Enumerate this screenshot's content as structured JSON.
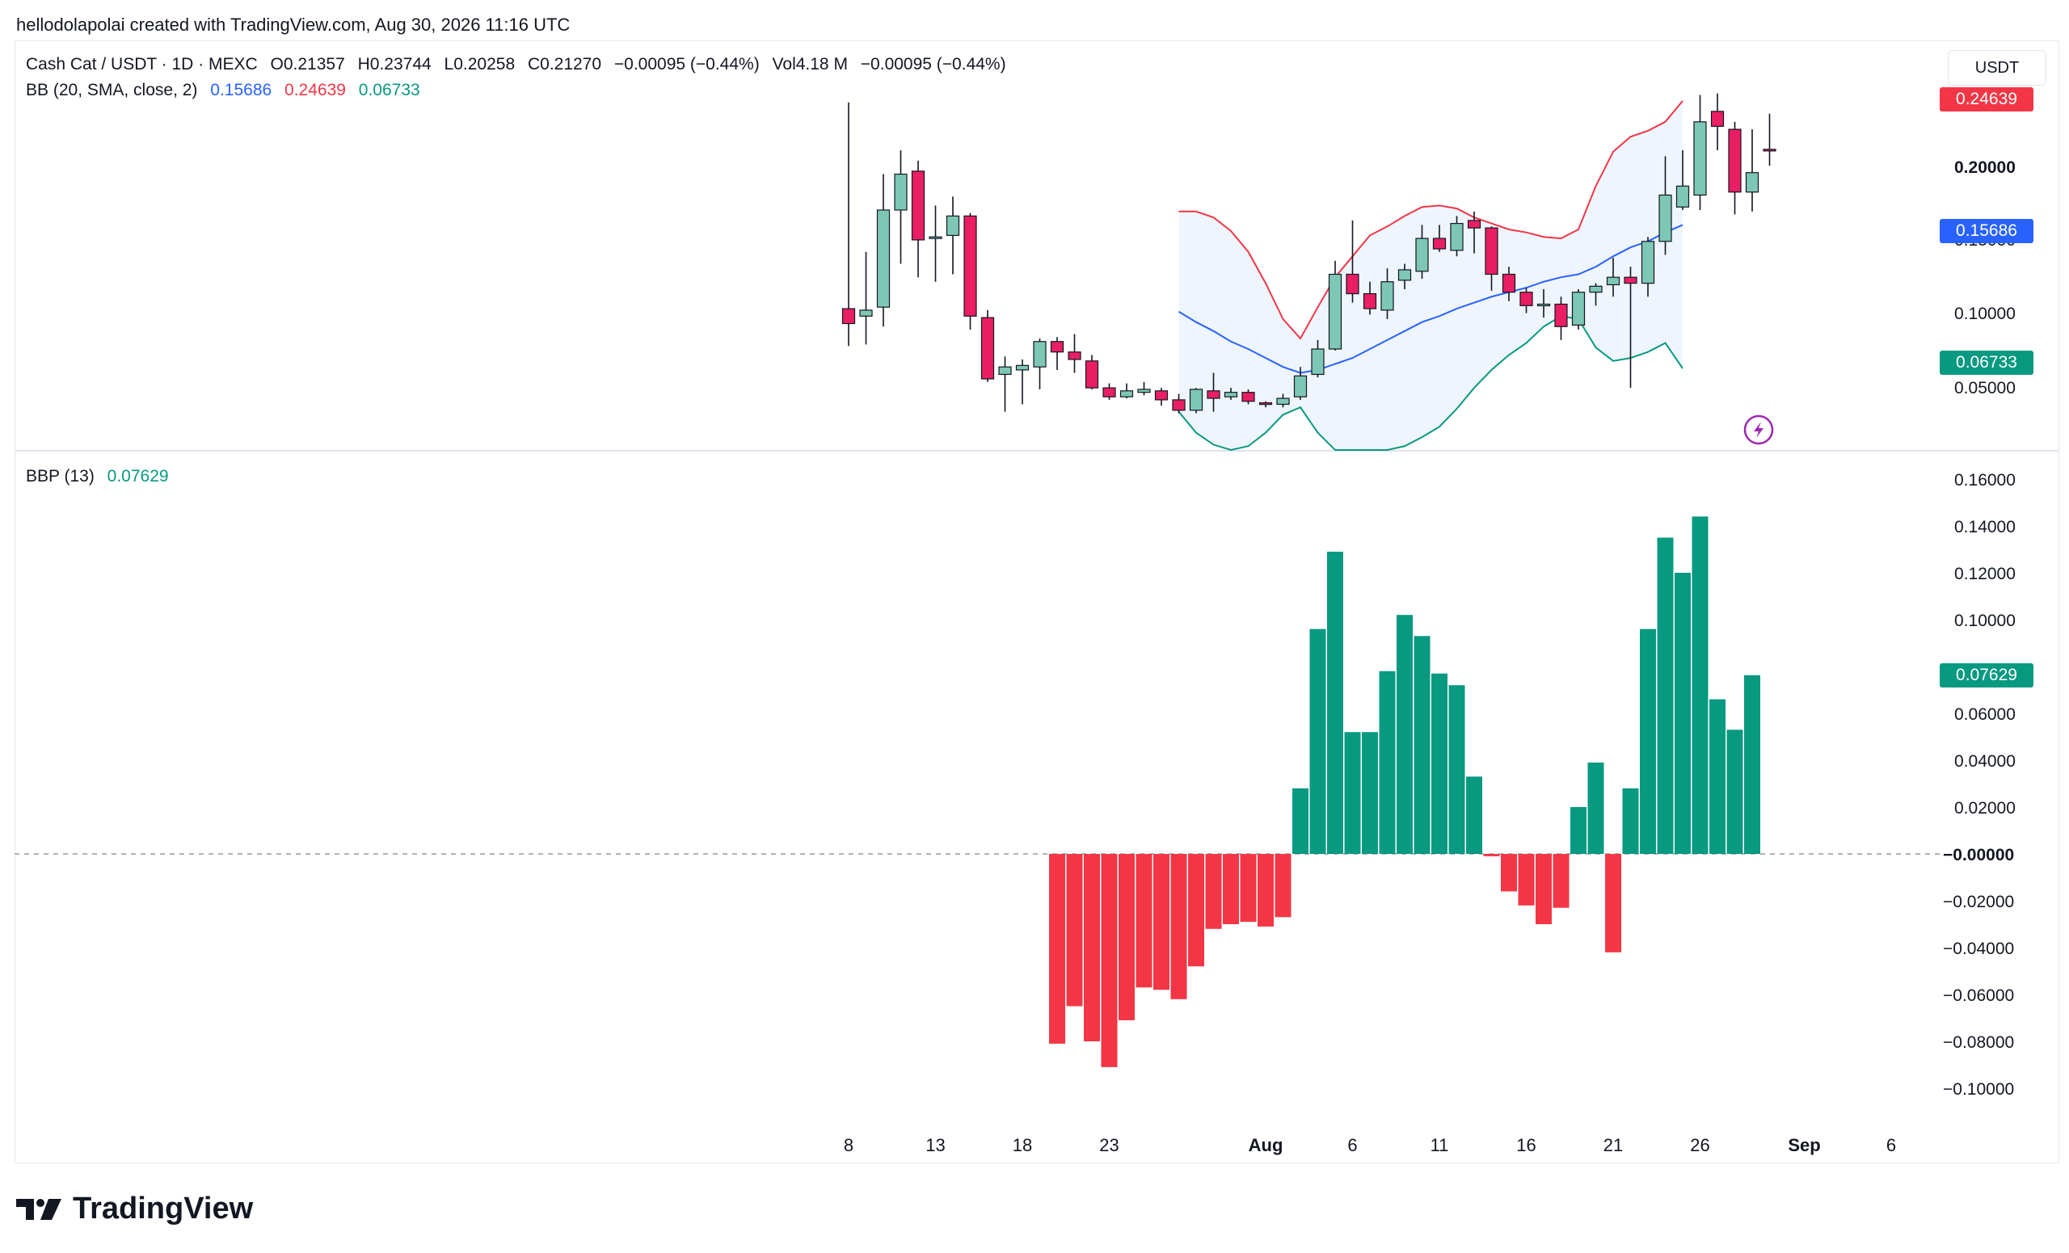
{
  "header": {
    "attribution": "hellodolapolai created with TradingView.com, Aug 30, 2026 11:16 UTC"
  },
  "legend": {
    "symbol": "Cash Cat / USDT · 1D · MEXC",
    "open": "O0.21357",
    "high": "H0.23744",
    "low": "L0.20258",
    "close": "C0.21270",
    "change": "−0.00095 (−0.44%)",
    "volume": "Vol4.18 M",
    "volume_change": "−0.00095 (−0.44%)",
    "bb_label": "BB (20, SMA, close, 2)",
    "bb_basis": "0.15686",
    "bb_upper": "0.24639",
    "bb_lower": "0.06733",
    "bbp_label": "BBP (13)",
    "bbp_value": "0.07629"
  },
  "unit_button": "USDT",
  "colors": {
    "up": "#7dc7b4",
    "down": "#e91e63",
    "bull_bar": "#089981",
    "bear_bar": "#f23645",
    "basis": "#2962ff",
    "upper": "#f23645",
    "lower": "#089981",
    "band_fill": "#eef5fd"
  },
  "price_axis": {
    "labels": [
      "0.20000",
      "0.15000",
      "0.10000",
      "0.05000"
    ],
    "tags": {
      "upper": "0.24639",
      "basis": "0.15686",
      "lower": "0.06733"
    }
  },
  "bbp_axis": {
    "labels": [
      "0.16000",
      "0.14000",
      "0.12000",
      "0.10000",
      "0.06000",
      "0.04000",
      "0.02000",
      "−0.00000",
      "−0.02000",
      "−0.04000",
      "−0.06000",
      "−0.08000",
      "−0.10000"
    ],
    "tag": "0.07629"
  },
  "x_axis": {
    "ticks": [
      "8",
      "13",
      "18",
      "23",
      "Aug",
      "6",
      "11",
      "16",
      "21",
      "26",
      "Sep",
      "6"
    ]
  },
  "brand": {
    "name": "TradingView"
  },
  "chart_data": [
    {
      "type": "candlestick",
      "title": "Cash Cat / USDT · 1D · MEXC",
      "x_start": "Jul 8, 2026",
      "ohlc": [
        [
          0.107,
          0.245,
          0.082,
          0.097
        ],
        [
          0.102,
          0.145,
          0.083,
          0.106
        ],
        [
          0.108,
          0.197,
          0.095,
          0.173
        ],
        [
          0.173,
          0.213,
          0.137,
          0.197
        ],
        [
          0.199,
          0.206,
          0.128,
          0.153
        ],
        [
          0.155,
          0.176,
          0.125,
          0.155
        ],
        [
          0.156,
          0.182,
          0.13,
          0.169
        ],
        [
          0.169,
          0.171,
          0.093,
          0.102
        ],
        [
          0.101,
          0.106,
          0.058,
          0.06
        ],
        [
          0.063,
          0.075,
          0.038,
          0.068
        ],
        [
          0.066,
          0.073,
          0.043,
          0.069
        ],
        [
          0.068,
          0.087,
          0.053,
          0.085
        ],
        [
          0.085,
          0.088,
          0.066,
          0.078
        ],
        [
          0.078,
          0.09,
          0.064,
          0.073
        ],
        [
          0.072,
          0.076,
          0.053,
          0.054
        ],
        [
          0.054,
          0.057,
          0.046,
          0.048
        ],
        [
          0.048,
          0.057,
          0.047,
          0.052
        ],
        [
          0.051,
          0.058,
          0.049,
          0.053
        ],
        [
          0.052,
          0.054,
          0.042,
          0.046
        ],
        [
          0.046,
          0.05,
          0.037,
          0.039
        ],
        [
          0.039,
          0.054,
          0.037,
          0.053
        ],
        [
          0.052,
          0.064,
          0.038,
          0.047
        ],
        [
          0.048,
          0.054,
          0.046,
          0.051
        ],
        [
          0.051,
          0.053,
          0.043,
          0.045
        ],
        [
          0.044,
          0.045,
          0.041,
          0.043
        ],
        [
          0.043,
          0.05,
          0.041,
          0.047
        ],
        [
          0.048,
          0.068,
          0.046,
          0.062
        ],
        [
          0.063,
          0.086,
          0.061,
          0.08
        ],
        [
          0.08,
          0.139,
          0.079,
          0.13
        ],
        [
          0.13,
          0.166,
          0.111,
          0.117
        ],
        [
          0.117,
          0.125,
          0.103,
          0.107
        ],
        [
          0.106,
          0.134,
          0.1,
          0.125
        ],
        [
          0.126,
          0.137,
          0.12,
          0.133
        ],
        [
          0.132,
          0.163,
          0.127,
          0.154
        ],
        [
          0.154,
          0.163,
          0.145,
          0.147
        ],
        [
          0.146,
          0.169,
          0.142,
          0.164
        ],
        [
          0.166,
          0.172,
          0.144,
          0.161
        ],
        [
          0.161,
          0.162,
          0.119,
          0.13
        ],
        [
          0.13,
          0.135,
          0.112,
          0.118
        ],
        [
          0.118,
          0.121,
          0.104,
          0.109
        ],
        [
          0.109,
          0.12,
          0.101,
          0.11
        ],
        [
          0.11,
          0.115,
          0.086,
          0.095
        ],
        [
          0.096,
          0.12,
          0.093,
          0.118
        ],
        [
          0.118,
          0.124,
          0.109,
          0.122
        ],
        [
          0.123,
          0.141,
          0.115,
          0.128
        ],
        [
          0.128,
          0.135,
          0.054,
          0.124
        ],
        [
          0.124,
          0.155,
          0.115,
          0.152
        ],
        [
          0.152,
          0.209,
          0.143,
          0.183
        ],
        [
          0.175,
          0.213,
          0.173,
          0.189
        ],
        [
          0.183,
          0.25,
          0.173,
          0.232
        ],
        [
          0.239,
          0.251,
          0.213,
          0.229
        ],
        [
          0.227,
          0.232,
          0.17,
          0.185
        ],
        [
          0.185,
          0.227,
          0.172,
          0.198
        ],
        [
          0.2136,
          0.2374,
          0.2026,
          0.2127
        ]
      ]
    },
    {
      "type": "line",
      "title": "BB (20, SMA, close, 2)",
      "x_start_index": 19,
      "series": [
        {
          "name": "Basis",
          "values": [
            0.105,
            0.098,
            0.092,
            0.085,
            0.08,
            0.074,
            0.068,
            0.064,
            0.066,
            0.07,
            0.074,
            0.08,
            0.086,
            0.092,
            0.098,
            0.102,
            0.107,
            0.111,
            0.115,
            0.118,
            0.121,
            0.125,
            0.128,
            0.13,
            0.135,
            0.142,
            0.148,
            0.152,
            0.158,
            0.163
          ]
        },
        {
          "name": "Upper",
          "values": [
            0.172,
            0.172,
            0.168,
            0.159,
            0.145,
            0.124,
            0.1,
            0.087,
            0.108,
            0.128,
            0.142,
            0.156,
            0.162,
            0.169,
            0.175,
            0.176,
            0.174,
            0.168,
            0.164,
            0.16,
            0.158,
            0.155,
            0.154,
            0.16,
            0.189,
            0.212,
            0.222,
            0.226,
            0.232,
            0.246
          ]
        },
        {
          "name": "Lower",
          "values": [
            0.038,
            0.024,
            0.016,
            0.011,
            0.015,
            0.024,
            0.036,
            0.041,
            0.024,
            0.012,
            0.006,
            0.004,
            0.01,
            0.015,
            0.021,
            0.028,
            0.04,
            0.054,
            0.066,
            0.076,
            0.084,
            0.095,
            0.102,
            0.1,
            0.081,
            0.072,
            0.074,
            0.078,
            0.084,
            0.067
          ]
        }
      ]
    },
    {
      "type": "bar",
      "title": "BBP (13)",
      "x_start_index": 12,
      "values": [
        -0.081,
        -0.065,
        -0.08,
        -0.091,
        -0.071,
        -0.057,
        -0.058,
        -0.062,
        -0.048,
        -0.032,
        -0.03,
        -0.029,
        -0.031,
        -0.027,
        0.028,
        0.096,
        0.129,
        0.052,
        0.052,
        0.078,
        0.102,
        0.093,
        0.077,
        0.072,
        0.033,
        -0.001,
        -0.016,
        -0.022,
        -0.03,
        -0.023,
        0.02,
        0.039,
        -0.042,
        0.028,
        0.096,
        0.135,
        0.12,
        0.144,
        0.066,
        0.053,
        0.07629
      ],
      "ylim": [
        -0.1,
        0.16
      ]
    }
  ]
}
